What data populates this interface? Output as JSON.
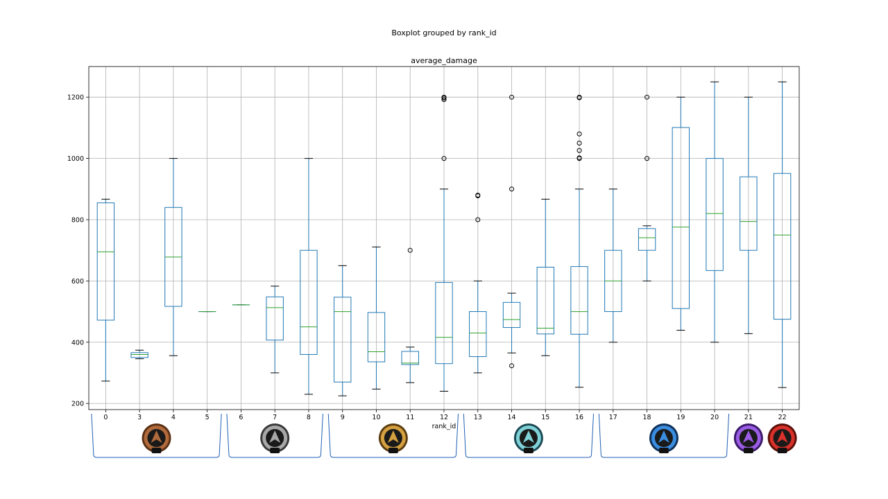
{
  "chart_data": {
    "type": "boxplot",
    "suptitle": "Boxplot grouped by rank_id",
    "title": "average_damage",
    "xlabel": "rank_id",
    "ylabel": "",
    "ylim": [
      180,
      1300
    ],
    "yticks": [
      200,
      400,
      600,
      800,
      1000,
      1200
    ],
    "grid": true,
    "colors": {
      "box": "#1f77b4",
      "median": "#2ca02c",
      "grid": "#b0b0b0",
      "whisker_cap": "#000000",
      "bracket": "#1f5fb4"
    },
    "categories": [
      "0",
      "3",
      "4",
      "5",
      "6",
      "7",
      "8",
      "9",
      "10",
      "11",
      "12",
      "13",
      "14",
      "15",
      "16",
      "17",
      "18",
      "19",
      "20",
      "21",
      "22"
    ],
    "boxes": [
      {
        "rank_id": "0",
        "whislo": 273,
        "q1": 472,
        "med": 695,
        "q3": 855,
        "whishi": 867,
        "fliers": []
      },
      {
        "rank_id": "3",
        "whislo": 346,
        "q1": 350,
        "med": 360,
        "q3": 366,
        "whishi": 374,
        "fliers": []
      },
      {
        "rank_id": "4",
        "whislo": 356,
        "q1": 517,
        "med": 678,
        "q3": 840,
        "whishi": 1000,
        "fliers": []
      },
      {
        "rank_id": "5",
        "whislo": 500,
        "q1": 500,
        "med": 500,
        "q3": 500,
        "whishi": 500,
        "fliers": []
      },
      {
        "rank_id": "6",
        "whislo": 522,
        "q1": 522,
        "med": 522,
        "q3": 522,
        "whishi": 522,
        "fliers": []
      },
      {
        "rank_id": "7",
        "whislo": 300,
        "q1": 407,
        "med": 513,
        "q3": 548,
        "whishi": 583,
        "fliers": []
      },
      {
        "rank_id": "8",
        "whislo": 230,
        "q1": 360,
        "med": 450,
        "q3": 700,
        "whishi": 1000,
        "fliers": []
      },
      {
        "rank_id": "9",
        "whislo": 225,
        "q1": 270,
        "med": 500,
        "q3": 547,
        "whishi": 650,
        "fliers": []
      },
      {
        "rank_id": "10",
        "whislo": 247,
        "q1": 336,
        "med": 369,
        "q3": 497,
        "whishi": 711,
        "fliers": []
      },
      {
        "rank_id": "11",
        "whislo": 268,
        "q1": 327,
        "med": 332,
        "q3": 370,
        "whishi": 384,
        "fliers": [
          700
        ]
      },
      {
        "rank_id": "12",
        "whislo": 240,
        "q1": 330,
        "med": 416,
        "q3": 595,
        "whishi": 900,
        "fliers": [
          1000,
          1192,
          1197,
          1200
        ]
      },
      {
        "rank_id": "13",
        "whislo": 300,
        "q1": 353,
        "med": 430,
        "q3": 500,
        "whishi": 600,
        "fliers": [
          800,
          880,
          878
        ]
      },
      {
        "rank_id": "14",
        "whislo": 365,
        "q1": 448,
        "med": 474,
        "q3": 530,
        "whishi": 560,
        "fliers": [
          323,
          900,
          1200
        ]
      },
      {
        "rank_id": "15",
        "whislo": 356,
        "q1": 427,
        "med": 446,
        "q3": 645,
        "whishi": 867,
        "fliers": []
      },
      {
        "rank_id": "16",
        "whislo": 253,
        "q1": 426,
        "med": 500,
        "q3": 647,
        "whishi": 900,
        "fliers": [
          1000,
          1002,
          1026,
          1050,
          1080,
          1200,
          1198
        ]
      },
      {
        "rank_id": "17",
        "whislo": 400,
        "q1": 500,
        "med": 600,
        "q3": 700,
        "whishi": 900,
        "fliers": []
      },
      {
        "rank_id": "18",
        "whislo": 600,
        "q1": 700,
        "med": 741,
        "q3": 771,
        "whishi": 780,
        "fliers": [
          1000,
          1200
        ]
      },
      {
        "rank_id": "19",
        "whislo": 439,
        "q1": 510,
        "med": 776,
        "q3": 1101,
        "whishi": 1200,
        "fliers": []
      },
      {
        "rank_id": "20",
        "whislo": 400,
        "q1": 634,
        "med": 820,
        "q3": 1000,
        "whishi": 1250,
        "fliers": []
      },
      {
        "rank_id": "21",
        "whislo": 428,
        "q1": 700,
        "med": 794,
        "q3": 940,
        "whishi": 1200,
        "fliers": []
      },
      {
        "rank_id": "22",
        "whislo": 252,
        "q1": 475,
        "med": 750,
        "q3": 951,
        "whishi": 1250,
        "fliers": []
      }
    ],
    "tier_groups": [
      {
        "name": "bronze-tier",
        "start": "0",
        "end": "5",
        "badge_color": "#b06a3b",
        "badge_rim": "#5a3015"
      },
      {
        "name": "silver-tier",
        "start": "6",
        "end": "8",
        "badge_color": "#a8a8a8",
        "badge_rim": "#3a3a3a"
      },
      {
        "name": "gold-tier",
        "start": "9",
        "end": "12",
        "badge_color": "#d4a040",
        "badge_rim": "#5a3c10"
      },
      {
        "name": "platinum-tier",
        "start": "13",
        "end": "16",
        "badge_color": "#7fd3d8",
        "badge_rim": "#1d4a55"
      },
      {
        "name": "diamond-tier",
        "start": "17",
        "end": "20",
        "badge_color": "#3b8de0",
        "badge_rim": "#10305a"
      },
      {
        "name": "master-tier",
        "start": "21",
        "end": "21",
        "badge_color": "#9b5de5",
        "badge_rim": "#3c1a6a"
      },
      {
        "name": "predator-tier",
        "start": "22",
        "end": "22",
        "badge_color": "#d9302a",
        "badge_rim": "#5a1008"
      }
    ]
  }
}
